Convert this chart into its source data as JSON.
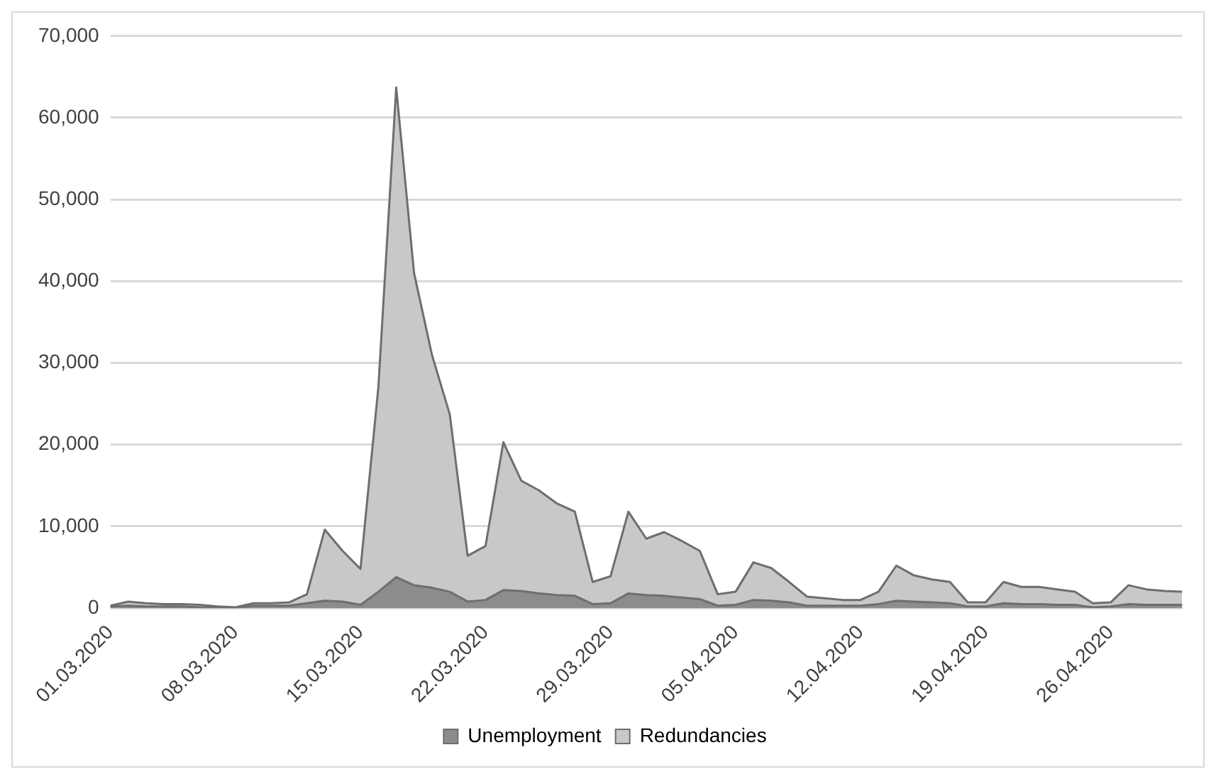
{
  "chart_data": {
    "type": "area",
    "stacked": true,
    "grid": "y",
    "legend": "bottom",
    "categories": [
      "01.03.2020",
      null,
      null,
      null,
      null,
      null,
      null,
      "08.03.2020",
      null,
      null,
      null,
      null,
      null,
      null,
      "15.03.2020",
      null,
      null,
      null,
      null,
      null,
      null,
      "22.03.2020",
      null,
      null,
      null,
      null,
      null,
      null,
      "29.03.2020",
      null,
      null,
      null,
      null,
      null,
      null,
      "05.04.2020",
      null,
      null,
      null,
      null,
      null,
      null,
      "12.04.2020",
      null,
      null,
      null,
      null,
      null,
      null,
      "19.04.2020",
      null,
      null,
      null,
      null,
      null,
      null,
      "26.04.2020",
      null,
      null,
      null,
      null
    ],
    "ylim": [
      0,
      70000
    ],
    "yticks": [
      {
        "value": 0,
        "label": "0"
      },
      {
        "value": 10000,
        "label": "10,000"
      },
      {
        "value": 20000,
        "label": "20,000"
      },
      {
        "value": 30000,
        "label": "30,000"
      },
      {
        "value": 40000,
        "label": "40,000"
      },
      {
        "value": 50000,
        "label": "50,000"
      },
      {
        "value": 60000,
        "label": "60,000"
      },
      {
        "value": 70000,
        "label": "70,000"
      }
    ],
    "series": [
      {
        "name": "Unemployment",
        "color": "#8c8c8c",
        "values": [
          200,
          300,
          200,
          200,
          200,
          100,
          100,
          50,
          300,
          300,
          300,
          600,
          900,
          800,
          400,
          2000,
          3800,
          2800,
          2500,
          2000,
          800,
          1000,
          2200,
          2100,
          1800,
          1600,
          1500,
          500,
          600,
          1800,
          1600,
          1500,
          1300,
          1100,
          300,
          400,
          1000,
          900,
          700,
          300,
          300,
          300,
          300,
          500,
          900,
          800,
          700,
          600,
          200,
          200,
          600,
          500,
          500,
          400,
          400,
          100,
          200,
          500,
          400,
          400,
          400
        ]
      },
      {
        "name": "Redundancies",
        "color": "#c8c8c8",
        "values": [
          100,
          500,
          400,
          300,
          300,
          300,
          100,
          50,
          300,
          300,
          400,
          1100,
          8700,
          6200,
          4400,
          25000,
          59900,
          38200,
          28500,
          21700,
          5600,
          6600,
          18100,
          13500,
          12600,
          11200,
          10300,
          2700,
          3300,
          10000,
          6900,
          7800,
          6900,
          5900,
          1400,
          1600,
          4600,
          4000,
          2500,
          1100,
          900,
          700,
          700,
          1500,
          4300,
          3200,
          2800,
          2600,
          500,
          500,
          2600,
          2100,
          2100,
          1900,
          1600,
          500,
          500,
          2300,
          1900,
          1700,
          1600
        ]
      }
    ]
  }
}
